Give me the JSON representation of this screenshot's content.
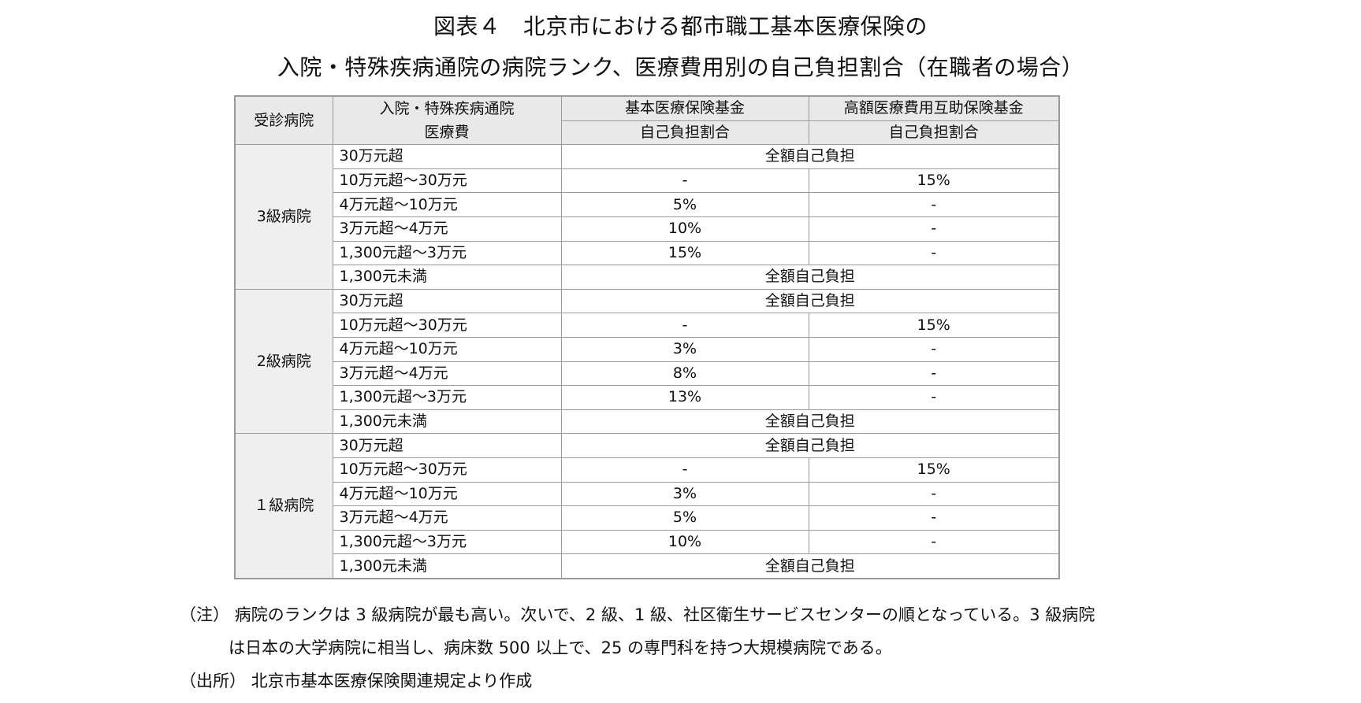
{
  "title": {
    "line1": "図表４　北京市における都市職工基本医療保険の",
    "line2": "入院・特殊疾病通院の病院ランク、医療費用別の自己負担割合（在職者の場合）"
  },
  "table": {
    "headers": {
      "hospital": "受診病院",
      "cost_line1": "入院・特殊疾病通院",
      "cost_line2": "医療費",
      "basic_fund": "基本医療保険基金",
      "high_fund": "高額医療費用互助保険基金",
      "basic_sub": "自己負担割合",
      "high_sub": "自己負担割合"
    },
    "groups": [
      {
        "rank": "3級病院",
        "rows": [
          {
            "cost": "30万元超",
            "merged": "全額自己負担"
          },
          {
            "cost": "10万元超～30万元",
            "basic": "-",
            "high": "15%"
          },
          {
            "cost": "4万元超～10万元",
            "basic": "5%",
            "high": "-"
          },
          {
            "cost": "3万元超～4万元",
            "basic": "10%",
            "high": "-"
          },
          {
            "cost": "1,300元超～3万元",
            "basic": "15%",
            "high": "-"
          },
          {
            "cost": "1,300元未満",
            "merged": "全額自己負担"
          }
        ]
      },
      {
        "rank": "2級病院",
        "rows": [
          {
            "cost": "30万元超",
            "merged": "全額自己負担"
          },
          {
            "cost": "10万元超～30万元",
            "basic": "-",
            "high": "15%"
          },
          {
            "cost": "4万元超～10万元",
            "basic": "3%",
            "high": "-"
          },
          {
            "cost": "3万元超～4万元",
            "basic": "8%",
            "high": "-"
          },
          {
            "cost": "1,300元超～3万元",
            "basic": "13%",
            "high": "-"
          },
          {
            "cost": "1,300元未満",
            "merged": "全額自己負担"
          }
        ]
      },
      {
        "rank": "１級病院",
        "rows": [
          {
            "cost": "30万元超",
            "merged": "全額自己負担"
          },
          {
            "cost": "10万元超～30万元",
            "basic": "-",
            "high": "15%"
          },
          {
            "cost": "4万元超～10万元",
            "basic": "3%",
            "high": "-"
          },
          {
            "cost": "3万元超～4万元",
            "basic": "5%",
            "high": "-"
          },
          {
            "cost": "1,300元超～3万元",
            "basic": "10%",
            "high": "-"
          },
          {
            "cost": "1,300元未満",
            "merged": "全額自己負担"
          }
        ]
      }
    ]
  },
  "notes": {
    "note_line1": "（注） 病院のランクは 3 級病院が最も高い。次いで、2 級、1 級、社区衛生サービスセンターの順となっている。3 級病院",
    "note_line2": "は日本の大学病院に相当し、病床数 500 以上で、25 の専門科を持つ大規模病院である。",
    "source": "（出所） 北京市基本医療保険関連規定より作成"
  }
}
